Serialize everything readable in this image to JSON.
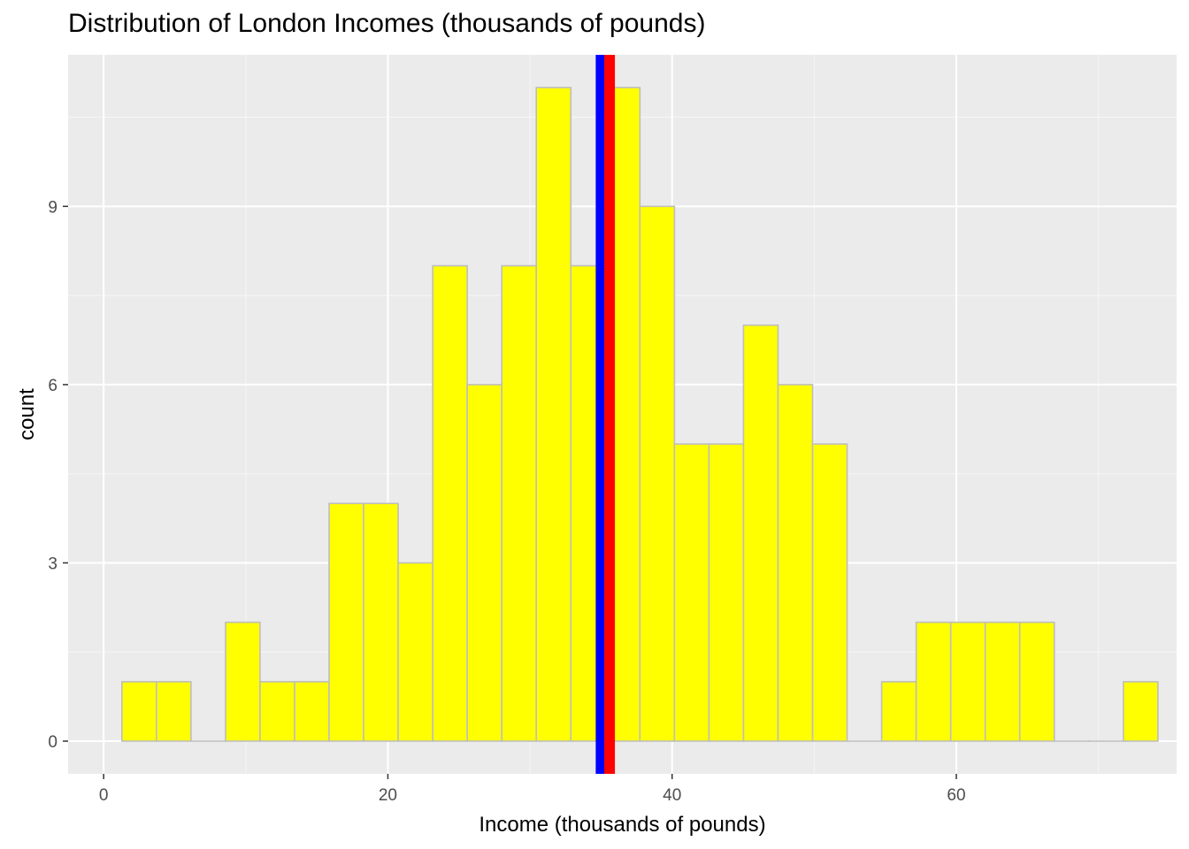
{
  "chart_data": {
    "type": "bar",
    "title": "Distribution of London Incomes (thousands of pounds)",
    "xlabel": "Income (thousands of pounds)",
    "ylabel": "count",
    "xlim": [
      -2.5,
      75.5
    ],
    "ylim": [
      -0.55,
      11.55
    ],
    "x_ticks": [
      0,
      20,
      40,
      60
    ],
    "y_ticks": [
      0,
      3,
      6,
      9
    ],
    "bin_width": 2.43,
    "bin_centers": [
      2.5,
      4.93,
      7.36,
      9.79,
      12.22,
      14.65,
      17.08,
      19.51,
      21.94,
      24.37,
      26.8,
      29.23,
      31.66,
      34.09,
      36.52,
      38.95,
      41.38,
      43.81,
      46.24,
      48.67,
      51.1,
      53.53,
      55.96,
      58.39,
      60.82,
      63.25,
      65.68,
      68.11,
      70.54,
      72.97
    ],
    "counts": [
      1,
      1,
      0,
      2,
      1,
      1,
      4,
      4,
      3,
      8,
      6,
      8,
      11,
      8,
      11,
      9,
      5,
      5,
      7,
      6,
      5,
      0,
      1,
      2,
      2,
      2,
      2,
      0,
      0,
      1
    ],
    "reference_lines": [
      {
        "x": 35.0,
        "color": "#0000ff"
      },
      {
        "x": 35.6,
        "color": "#ff0000"
      }
    ],
    "grid": true,
    "colors": {
      "bar_fill": "#ffff00",
      "bar_outline": "#bebebe",
      "panel_background": "#ebebeb",
      "grid_major": "#ffffff",
      "grid_minor": "#f5f5f5"
    }
  }
}
